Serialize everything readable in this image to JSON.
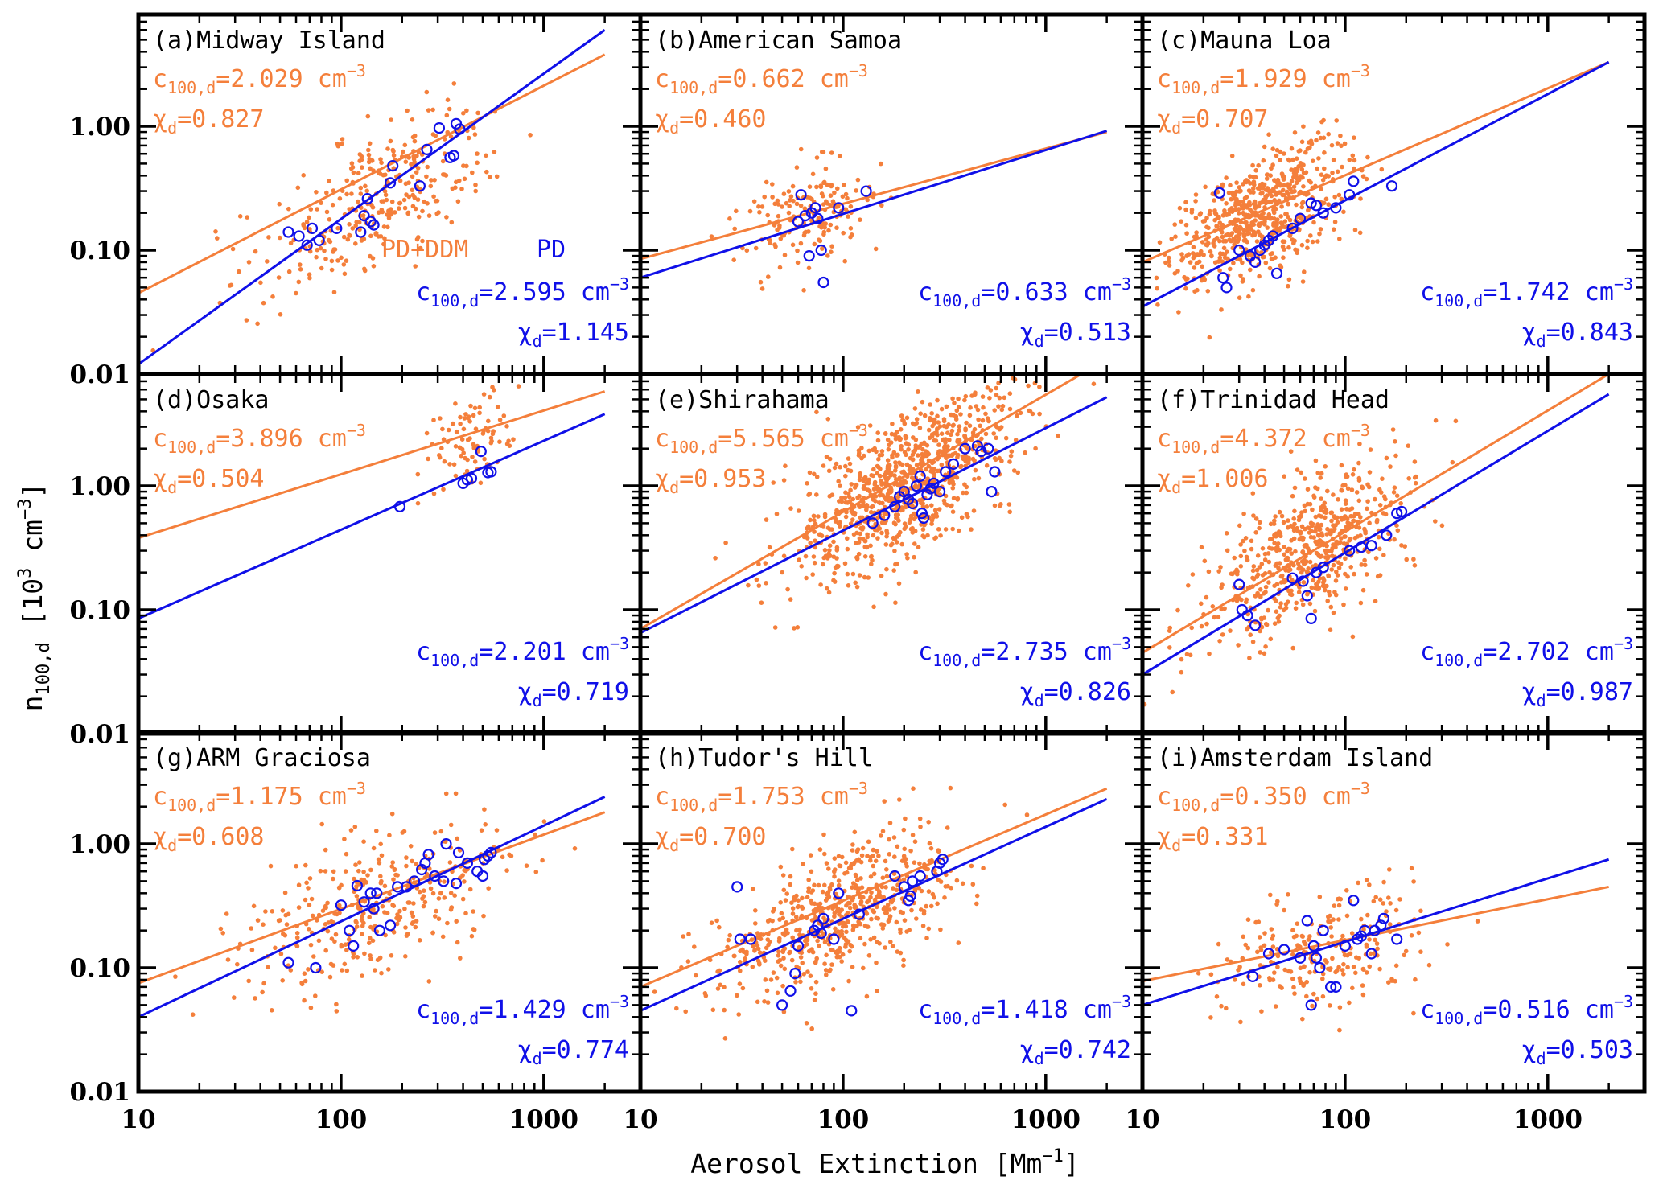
{
  "colors": {
    "orange": "#F47F3B",
    "blue": "#1010E8",
    "axis": "#000000"
  },
  "figure": {
    "xlabel": "Aerosol Extinction [Mm",
    "xlabel_sup": "−1",
    "xlabel_end": "]",
    "ylabel": "n",
    "ylabel_sub": "100,d",
    "ylabel_mid": " [10",
    "ylabel_sup1": "3",
    "ylabel_mid2": " cm",
    "ylabel_sup2": "−3",
    "ylabel_end": "]",
    "legend_pd_ddm": "PD+DDM",
    "legend_pd": "PD",
    "c_prefix": "c",
    "c_sub": "100,d",
    "unit": " cm",
    "unit_sup": "−3",
    "chi_prefix": "χ",
    "chi_sub": "d"
  },
  "chart_data": [
    {
      "type": "scatter",
      "title": "(a)Midway Island",
      "orange": {
        "c": "2.029",
        "chi": "0.827"
      },
      "blue": {
        "c": "2.595",
        "chi": "1.145"
      },
      "fit_orange": [
        [
          10,
          0.045
        ],
        [
          2000,
          3.8
        ]
      ],
      "fit_blue": [
        [
          10,
          0.012
        ],
        [
          2000,
          6.0
        ]
      ],
      "cloud": {
        "cx": 140,
        "cy": 0.25,
        "sx": 0.3,
        "sy": 0.28,
        "n": 320,
        "slope": 0.8
      },
      "blue_points": [
        [
          55,
          0.14
        ],
        [
          62,
          0.13
        ],
        [
          68,
          0.11
        ],
        [
          72,
          0.15
        ],
        [
          78,
          0.12
        ],
        [
          95,
          0.15
        ],
        [
          125,
          0.14
        ],
        [
          130,
          0.19
        ],
        [
          135,
          0.26
        ],
        [
          140,
          0.17
        ],
        [
          145,
          0.16
        ],
        [
          175,
          0.35
        ],
        [
          180,
          0.48
        ],
        [
          245,
          0.33
        ],
        [
          265,
          0.65
        ],
        [
          305,
          0.97
        ],
        [
          345,
          0.56
        ],
        [
          360,
          0.58
        ],
        [
          370,
          1.05
        ],
        [
          385,
          0.95
        ]
      ],
      "xticks": [
        10,
        100,
        1000
      ],
      "yticks": [
        0.01,
        0.1,
        1.0
      ],
      "xlim": [
        10,
        3000
      ],
      "ylim": [
        0.01,
        8
      ]
    },
    {
      "type": "scatter",
      "title": "(b)American Samoa",
      "orange": {
        "c": "0.662",
        "chi": "0.460"
      },
      "blue": {
        "c": "0.633",
        "chi": "0.513"
      },
      "fit_orange": [
        [
          10,
          0.085
        ],
        [
          2000,
          0.9
        ]
      ],
      "fit_blue": [
        [
          10,
          0.06
        ],
        [
          2000,
          0.92
        ]
      ],
      "cloud": {
        "cx": 70,
        "cy": 0.19,
        "sx": 0.16,
        "sy": 0.2,
        "n": 170,
        "slope": 0.4
      },
      "blue_points": [
        [
          60,
          0.17
        ],
        [
          62,
          0.28
        ],
        [
          65,
          0.19
        ],
        [
          68,
          0.09
        ],
        [
          70,
          0.2
        ],
        [
          73,
          0.22
        ],
        [
          75,
          0.18
        ],
        [
          78,
          0.1
        ],
        [
          80,
          0.055
        ],
        [
          95,
          0.22
        ],
        [
          130,
          0.3
        ]
      ],
      "xticks": [
        10,
        100,
        1000
      ],
      "yticks": [
        0.01,
        0.1,
        1.0
      ],
      "xlim": [
        10,
        3000
      ],
      "ylim": [
        0.01,
        8
      ]
    },
    {
      "type": "scatter",
      "title": "(c)Mauna Loa",
      "orange": {
        "c": "1.929",
        "chi": "0.707"
      },
      "blue": {
        "c": "1.742",
        "chi": "0.843"
      },
      "fit_orange": [
        [
          10,
          0.08
        ],
        [
          2000,
          3.3
        ]
      ],
      "fit_blue": [
        [
          10,
          0.035
        ],
        [
          2000,
          3.3
        ]
      ],
      "cloud": {
        "cx": 38,
        "cy": 0.19,
        "sx": 0.2,
        "sy": 0.23,
        "n": 650,
        "slope": 0.7
      },
      "blue_points": [
        [
          24,
          0.29
        ],
        [
          25,
          0.06
        ],
        [
          26,
          0.05
        ],
        [
          30,
          0.1
        ],
        [
          34,
          0.09
        ],
        [
          36,
          0.08
        ],
        [
          38,
          0.1
        ],
        [
          40,
          0.11
        ],
        [
          42,
          0.12
        ],
        [
          44,
          0.13
        ],
        [
          46,
          0.065
        ],
        [
          55,
          0.15
        ],
        [
          60,
          0.18
        ],
        [
          68,
          0.24
        ],
        [
          72,
          0.23
        ],
        [
          78,
          0.2
        ],
        [
          90,
          0.22
        ],
        [
          105,
          0.28
        ],
        [
          110,
          0.36
        ],
        [
          170,
          0.33
        ]
      ],
      "xticks": [
        10,
        100,
        1000
      ],
      "yticks": [
        0.01,
        0.1,
        1.0
      ],
      "xlim": [
        10,
        3000
      ],
      "ylim": [
        0.01,
        8
      ]
    },
    {
      "type": "scatter",
      "title": "(d)Osaka",
      "orange": {
        "c": "3.896",
        "chi": "0.504"
      },
      "blue": {
        "c": "2.201",
        "chi": "0.719"
      },
      "fit_orange": [
        [
          10,
          0.38
        ],
        [
          2000,
          5.8
        ]
      ],
      "fit_blue": [
        [
          10,
          0.085
        ],
        [
          2000,
          3.8
        ]
      ],
      "cloud": {
        "cx": 430,
        "cy": 2.5,
        "sx": 0.1,
        "sy": 0.18,
        "n": 90,
        "slope": 0.6
      },
      "blue_points": [
        [
          195,
          0.68
        ],
        [
          400,
          1.05
        ],
        [
          420,
          1.12
        ],
        [
          440,
          1.15
        ],
        [
          490,
          1.9
        ],
        [
          530,
          1.28
        ],
        [
          550,
          1.3
        ]
      ],
      "xticks": [
        10,
        100,
        1000
      ],
      "yticks": [
        0.01,
        0.1,
        1.0
      ],
      "xlim": [
        10,
        3000
      ],
      "ylim": [
        0.01,
        8
      ]
    },
    {
      "type": "scatter",
      "title": "(e)Shirahama",
      "orange": {
        "c": "5.565",
        "chi": "0.953"
      },
      "blue": {
        "c": "2.735",
        "chi": "0.826"
      },
      "fit_orange": [
        [
          10,
          0.07
        ],
        [
          1500,
          8.0
        ]
      ],
      "fit_blue": [
        [
          10,
          0.065
        ],
        [
          2000,
          5.2
        ]
      ],
      "cloud": {
        "cx": 200,
        "cy": 1.0,
        "sx": 0.28,
        "sy": 0.28,
        "n": 900,
        "slope": 0.9
      },
      "blue_points": [
        [
          140,
          0.5
        ],
        [
          160,
          0.58
        ],
        [
          180,
          0.68
        ],
        [
          190,
          0.82
        ],
        [
          200,
          0.9
        ],
        [
          210,
          0.78
        ],
        [
          220,
          0.72
        ],
        [
          230,
          1.0
        ],
        [
          240,
          1.2
        ],
        [
          245,
          0.6
        ],
        [
          250,
          0.55
        ],
        [
          260,
          0.85
        ],
        [
          270,
          0.95
        ],
        [
          280,
          1.05
        ],
        [
          300,
          0.9
        ],
        [
          320,
          1.3
        ],
        [
          350,
          1.5
        ],
        [
          400,
          2.0
        ],
        [
          460,
          2.1
        ],
        [
          480,
          1.9
        ],
        [
          520,
          2.0
        ],
        [
          540,
          0.9
        ],
        [
          560,
          1.3
        ]
      ],
      "xticks": [
        10,
        100,
        1000
      ],
      "yticks": [
        0.01,
        0.1,
        1.0
      ],
      "xlim": [
        10,
        3000
      ],
      "ylim": [
        0.01,
        8
      ]
    },
    {
      "type": "scatter",
      "title": "(f)Trinidad Head",
      "orange": {
        "c": "4.372",
        "chi": "1.006"
      },
      "blue": {
        "c": "2.702",
        "chi": "0.987"
      },
      "fit_orange": [
        [
          10,
          0.045
        ],
        [
          2000,
          8.0
        ]
      ],
      "fit_blue": [
        [
          10,
          0.03
        ],
        [
          2000,
          5.5
        ]
      ],
      "cloud": {
        "cx": 65,
        "cy": 0.3,
        "sx": 0.25,
        "sy": 0.28,
        "n": 600,
        "slope": 0.9
      },
      "blue_points": [
        [
          30,
          0.16
        ],
        [
          31,
          0.1
        ],
        [
          33,
          0.09
        ],
        [
          36,
          0.075
        ],
        [
          55,
          0.18
        ],
        [
          62,
          0.17
        ],
        [
          65,
          0.13
        ],
        [
          68,
          0.085
        ],
        [
          72,
          0.2
        ],
        [
          78,
          0.22
        ],
        [
          105,
          0.3
        ],
        [
          120,
          0.32
        ],
        [
          135,
          0.33
        ],
        [
          160,
          0.4
        ],
        [
          180,
          0.6
        ],
        [
          190,
          0.62
        ]
      ],
      "xticks": [
        10,
        100,
        1000
      ],
      "yticks": [
        0.01,
        0.1,
        1.0
      ],
      "xlim": [
        10,
        3000
      ],
      "ylim": [
        0.01,
        8
      ]
    },
    {
      "type": "scatter",
      "title": "(g)ARM Graciosa",
      "orange": {
        "c": "1.175",
        "chi": "0.608"
      },
      "blue": {
        "c": "1.429",
        "chi": "0.774"
      },
      "fit_orange": [
        [
          10,
          0.075
        ],
        [
          2000,
          1.8
        ]
      ],
      "fit_blue": [
        [
          10,
          0.04
        ],
        [
          2000,
          2.4
        ]
      ],
      "cloud": {
        "cx": 150,
        "cy": 0.3,
        "sx": 0.35,
        "sy": 0.28,
        "n": 350,
        "slope": 0.6
      },
      "blue_points": [
        [
          55,
          0.11
        ],
        [
          75,
          0.1
        ],
        [
          100,
          0.32
        ],
        [
          110,
          0.2
        ],
        [
          115,
          0.15
        ],
        [
          120,
          0.46
        ],
        [
          130,
          0.34
        ],
        [
          140,
          0.4
        ],
        [
          145,
          0.3
        ],
        [
          150,
          0.4
        ],
        [
          155,
          0.2
        ],
        [
          175,
          0.22
        ],
        [
          190,
          0.45
        ],
        [
          210,
          0.45
        ],
        [
          230,
          0.5
        ],
        [
          250,
          0.62
        ],
        [
          260,
          0.7
        ],
        [
          270,
          0.82
        ],
        [
          290,
          0.55
        ],
        [
          320,
          0.5
        ],
        [
          330,
          1.0
        ],
        [
          370,
          0.48
        ],
        [
          380,
          0.85
        ],
        [
          420,
          0.7
        ],
        [
          470,
          0.6
        ],
        [
          500,
          0.55
        ],
        [
          510,
          0.75
        ],
        [
          530,
          0.8
        ],
        [
          550,
          0.85
        ]
      ],
      "xticks": [
        10,
        100,
        1000
      ],
      "yticks": [
        0.01,
        0.1,
        1.0
      ],
      "xlim": [
        10,
        3000
      ],
      "ylim": [
        0.01,
        8
      ]
    },
    {
      "type": "scatter",
      "title": "(h)Tudor's Hill",
      "orange": {
        "c": "1.753",
        "chi": "0.700"
      },
      "blue": {
        "c": "1.418",
        "chi": "0.742"
      },
      "fit_orange": [
        [
          10,
          0.07
        ],
        [
          2000,
          2.8
        ]
      ],
      "fit_blue": [
        [
          10,
          0.045
        ],
        [
          2000,
          2.3
        ]
      ],
      "cloud": {
        "cx": 95,
        "cy": 0.28,
        "sx": 0.28,
        "sy": 0.26,
        "n": 600,
        "slope": 0.7
      },
      "blue_points": [
        [
          30,
          0.45
        ],
        [
          31,
          0.17
        ],
        [
          35,
          0.17
        ],
        [
          50,
          0.05
        ],
        [
          55,
          0.065
        ],
        [
          58,
          0.09
        ],
        [
          60,
          0.15
        ],
        [
          72,
          0.2
        ],
        [
          75,
          0.22
        ],
        [
          78,
          0.19
        ],
        [
          80,
          0.25
        ],
        [
          90,
          0.17
        ],
        [
          95,
          0.4
        ],
        [
          110,
          0.045
        ],
        [
          120,
          0.27
        ],
        [
          180,
          0.55
        ],
        [
          200,
          0.45
        ],
        [
          210,
          0.35
        ],
        [
          215,
          0.38
        ],
        [
          220,
          0.5
        ],
        [
          240,
          0.55
        ],
        [
          290,
          0.6
        ],
        [
          300,
          0.7
        ],
        [
          310,
          0.75
        ]
      ],
      "xticks": [
        10,
        100,
        1000
      ],
      "yticks": [
        0.01,
        0.1,
        1.0
      ],
      "xlim": [
        10,
        3000
      ],
      "ylim": [
        0.01,
        8
      ]
    },
    {
      "type": "scatter",
      "title": "(i)Amsterdam Island",
      "orange": {
        "c": "0.350",
        "chi": "0.331"
      },
      "blue": {
        "c": "0.516",
        "chi": "0.503"
      },
      "fit_orange": [
        [
          10,
          0.078
        ],
        [
          2000,
          0.45
        ]
      ],
      "fit_blue": [
        [
          10,
          0.05
        ],
        [
          2000,
          0.75
        ]
      ],
      "cloud": {
        "cx": 75,
        "cy": 0.14,
        "sx": 0.25,
        "sy": 0.24,
        "n": 230,
        "slope": 0.3
      },
      "blue_points": [
        [
          35,
          0.085
        ],
        [
          42,
          0.13
        ],
        [
          50,
          0.14
        ],
        [
          60,
          0.12
        ],
        [
          65,
          0.24
        ],
        [
          68,
          0.05
        ],
        [
          70,
          0.15
        ],
        [
          72,
          0.12
        ],
        [
          75,
          0.1
        ],
        [
          78,
          0.2
        ],
        [
          85,
          0.07
        ],
        [
          90,
          0.07
        ],
        [
          100,
          0.15
        ],
        [
          110,
          0.35
        ],
        [
          115,
          0.17
        ],
        [
          120,
          0.18
        ],
        [
          125,
          0.2
        ],
        [
          135,
          0.13
        ],
        [
          140,
          0.2
        ],
        [
          150,
          0.22
        ],
        [
          155,
          0.25
        ],
        [
          180,
          0.17
        ]
      ],
      "xticks": [
        10,
        100,
        1000
      ],
      "yticks": [
        0.01,
        0.1,
        1.0
      ],
      "xlim": [
        10,
        3000
      ],
      "ylim": [
        0.01,
        8
      ]
    }
  ]
}
